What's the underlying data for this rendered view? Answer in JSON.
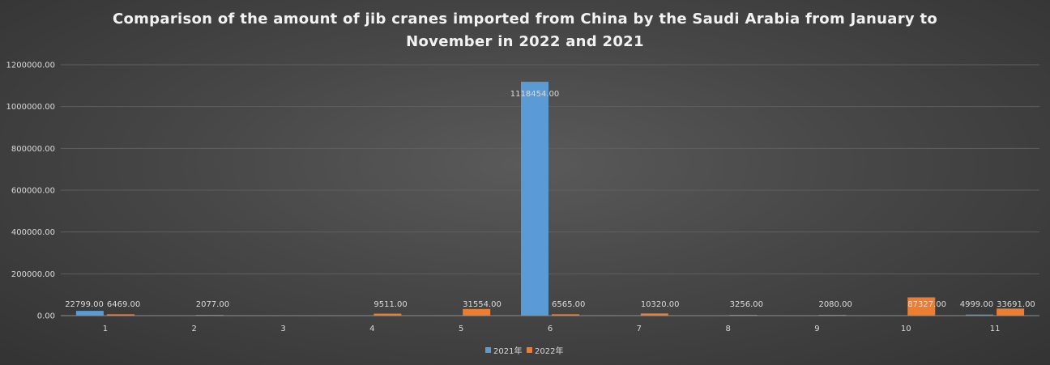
{
  "chart_data": {
    "type": "bar",
    "title_lines": [
      "Comparison of the amount of jib cranes imported from China by the Saudi Arabia from January to",
      "November in 2022 and 2021"
    ],
    "categories": [
      "1",
      "2",
      "3",
      "4",
      "5",
      "6",
      "7",
      "8",
      "9",
      "10",
      "11"
    ],
    "series": [
      {
        "name": "2021年",
        "color": "#5b9bd5",
        "values": [
          22799,
          null,
          null,
          null,
          null,
          1118454,
          null,
          null,
          null,
          null,
          4999
        ],
        "labels": [
          "22799.00",
          "",
          "",
          "",
          "",
          "1118454.00",
          "",
          "",
          "",
          "",
          "4999.00"
        ]
      },
      {
        "name": "2022年",
        "color": "#ed7d31",
        "values": [
          6469,
          2077,
          null,
          9511,
          31554,
          6565,
          10320,
          3256,
          2080,
          87327,
          33691
        ],
        "labels": [
          "6469.00",
          "2077.00",
          "",
          "9511.00",
          "31554.00",
          "6565.00",
          "10320.00",
          "3256.00",
          "2080.00",
          "87327.00",
          "33691.00"
        ]
      }
    ],
    "y_ticks": [
      "0.00",
      "200000.00",
      "400000.00",
      "600000.00",
      "800000.00",
      "1000000.00",
      "1200000.00"
    ],
    "ylim": [
      0,
      1200000
    ],
    "grid": true,
    "legend_position": "bottom"
  }
}
